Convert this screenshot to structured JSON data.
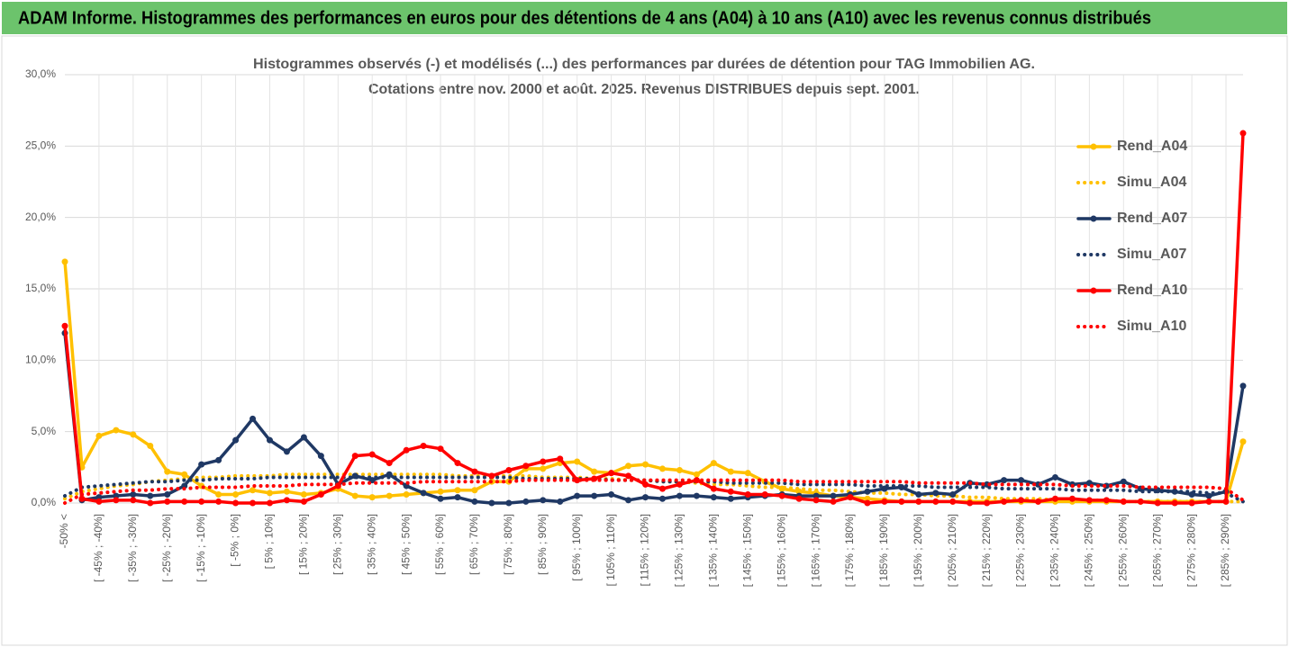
{
  "banner": "ADAM Informe. Histogrammes des performances en euros pour des détentions de 4 ans (A04) à 10 ans (A10) avec les revenus connus distribués",
  "chart_data": {
    "type": "line",
    "title": "Histogrammes observés (-) et modélisés (...) des performances par durées de détention pour TAG Immobilien AG.",
    "subtitle": "Cotations entre nov. 2000 et août. 2025. Revenus DISTRIBUES depuis sept. 2001.",
    "categories": [
      "-50% <",
      null,
      "[ -45% ; -40%]",
      null,
      "[ -35% ; -30%]",
      null,
      "[ -25% ; -20%]",
      null,
      "[ -15% ; -10%]",
      null,
      "[ -5% ; 0%]",
      null,
      "[ 5% ; 10%]",
      null,
      "[ 15% ; 20%]",
      null,
      "[ 25% ; 30%]",
      null,
      "[ 35% ; 40%]",
      null,
      "[ 45% ; 50%]",
      null,
      "[ 55% ; 60%]",
      null,
      "[ 65% ; 70%]",
      null,
      "[ 75% ; 80%]",
      null,
      "[ 85% ; 90%]",
      null,
      "[ 95% ; 100%]",
      null,
      "[ 105% ; 110%]",
      null,
      "[ 115% ; 120%]",
      null,
      "[ 125% ; 130%]",
      null,
      "[ 135% ; 140%]",
      null,
      "[ 145% ; 150%]",
      null,
      "[ 155% ; 160%]",
      null,
      "[ 165% ; 170%]",
      null,
      "[ 175% ; 180%]",
      null,
      "[ 185% ; 190%]",
      null,
      "[ 195% ; 200%]",
      null,
      "[ 205% ; 210%]",
      null,
      "[ 215% ; 220%]",
      null,
      "[ 225% ; 230%]",
      null,
      "[ 235% ; 240%]",
      null,
      "[ 245% ; 250%]",
      null,
      "[ 255% ; 260%]",
      null,
      "[ 265% ; 270%]",
      null,
      "[ 275% ; 280%]",
      null,
      "[ 285% ; 290%]",
      null
    ],
    "series": [
      {
        "name": "Rend_A04",
        "color": "#ffc000",
        "style": "solid",
        "values": [
          16.9,
          2.5,
          4.7,
          5.1,
          4.8,
          4.0,
          2.2,
          2.0,
          1.2,
          0.6,
          0.6,
          0.9,
          0.7,
          0.8,
          0.6,
          0.7,
          1.0,
          0.5,
          0.4,
          0.5,
          0.6,
          0.7,
          0.8,
          0.9,
          0.9,
          1.5,
          1.5,
          2.4,
          2.4,
          2.8,
          2.9,
          2.2,
          2.1,
          2.6,
          2.7,
          2.4,
          2.3,
          2.0,
          2.8,
          2.2,
          2.1,
          1.5,
          1.0,
          0.8,
          0.7,
          0.5,
          0.4,
          0.3,
          0.2,
          0.1,
          0.1,
          0.1,
          0.1,
          0.1,
          0.1,
          0.1,
          0.1,
          0.1,
          0.1,
          0.1,
          0.1,
          0.1,
          0.1,
          0.1,
          0.1,
          0.1,
          0.1,
          0.1,
          0.1,
          4.3
        ]
      },
      {
        "name": "Simu_A04",
        "color": "#ffc000",
        "style": "dotted",
        "values": [
          0.3,
          0.8,
          1.0,
          1.2,
          1.3,
          1.5,
          1.6,
          1.7,
          1.8,
          1.8,
          1.9,
          1.9,
          1.9,
          2.0,
          2.0,
          2.0,
          2.0,
          2.0,
          2.0,
          2.0,
          2.0,
          2.0,
          2.0,
          1.9,
          1.9,
          1.9,
          1.9,
          1.9,
          1.8,
          1.8,
          1.8,
          1.7,
          1.7,
          1.6,
          1.6,
          1.5,
          1.5,
          1.4,
          1.3,
          1.3,
          1.2,
          1.1,
          1.1,
          1.0,
          0.9,
          0.9,
          0.8,
          0.7,
          0.7,
          0.6,
          0.6,
          0.5,
          0.5,
          0.4,
          0.4,
          0.3,
          0.3,
          0.3,
          0.2,
          0.2,
          0.2,
          0.2,
          0.1,
          0.1,
          0.1,
          0.1,
          0.1,
          0.1,
          0.1,
          0.1
        ]
      },
      {
        "name": "Rend_A07",
        "color": "#1f3864",
        "style": "solid",
        "values": [
          11.9,
          0.2,
          0.4,
          0.5,
          0.6,
          0.5,
          0.6,
          1.2,
          2.7,
          3.0,
          4.4,
          5.9,
          4.4,
          3.6,
          4.6,
          3.3,
          1.3,
          1.9,
          1.6,
          2.0,
          1.2,
          0.7,
          0.3,
          0.4,
          0.1,
          0.0,
          0.0,
          0.1,
          0.2,
          0.1,
          0.5,
          0.5,
          0.6,
          0.2,
          0.4,
          0.3,
          0.5,
          0.5,
          0.4,
          0.3,
          0.4,
          0.5,
          0.6,
          0.5,
          0.5,
          0.5,
          0.6,
          0.8,
          1.0,
          1.1,
          0.6,
          0.7,
          0.6,
          1.4,
          1.3,
          1.6,
          1.6,
          1.3,
          1.8,
          1.3,
          1.4,
          1.2,
          1.5,
          1.0,
          0.9,
          0.8,
          0.6,
          0.5,
          0.8,
          8.2
        ]
      },
      {
        "name": "Simu_A07",
        "color": "#1f3864",
        "style": "dotted",
        "values": [
          0.5,
          1.1,
          1.2,
          1.3,
          1.4,
          1.5,
          1.5,
          1.6,
          1.6,
          1.7,
          1.7,
          1.7,
          1.8,
          1.8,
          1.8,
          1.8,
          1.8,
          1.8,
          1.8,
          1.8,
          1.8,
          1.8,
          1.8,
          1.8,
          1.8,
          1.8,
          1.8,
          1.7,
          1.7,
          1.7,
          1.7,
          1.7,
          1.6,
          1.6,
          1.6,
          1.5,
          1.5,
          1.5,
          1.5,
          1.4,
          1.4,
          1.4,
          1.4,
          1.3,
          1.3,
          1.3,
          1.3,
          1.2,
          1.2,
          1.2,
          1.2,
          1.1,
          1.1,
          1.1,
          1.1,
          1.0,
          1.0,
          1.0,
          1.0,
          0.9,
          0.9,
          0.9,
          0.9,
          0.8,
          0.8,
          0.8,
          0.8,
          0.7,
          0.7,
          0.1
        ]
      },
      {
        "name": "Rend_A10",
        "color": "#ff0000",
        "style": "solid",
        "values": [
          12.4,
          0.3,
          0.1,
          0.2,
          0.2,
          0.0,
          0.1,
          0.1,
          0.1,
          0.1,
          0.0,
          0.0,
          0.0,
          0.2,
          0.1,
          0.6,
          1.2,
          3.3,
          3.4,
          2.8,
          3.7,
          4.0,
          3.8,
          2.8,
          2.2,
          1.9,
          2.3,
          2.6,
          2.9,
          3.1,
          1.6,
          1.7,
          2.1,
          1.9,
          1.3,
          1.0,
          1.3,
          1.6,
          1.0,
          0.8,
          0.6,
          0.6,
          0.5,
          0.3,
          0.2,
          0.1,
          0.4,
          0.0,
          0.1,
          0.1,
          0.1,
          0.1,
          0.1,
          0.0,
          0.0,
          0.1,
          0.2,
          0.1,
          0.3,
          0.3,
          0.2,
          0.2,
          0.1,
          0.1,
          0.0,
          0.0,
          0.0,
          0.1,
          0.1,
          25.9
        ]
      },
      {
        "name": "Simu_A10",
        "color": "#ff0000",
        "style": "dotted",
        "values": [
          0.0,
          0.6,
          0.7,
          0.8,
          0.9,
          0.9,
          1.0,
          1.0,
          1.1,
          1.1,
          1.1,
          1.2,
          1.2,
          1.2,
          1.3,
          1.3,
          1.3,
          1.4,
          1.4,
          1.4,
          1.4,
          1.5,
          1.5,
          1.5,
          1.5,
          1.5,
          1.5,
          1.6,
          1.6,
          1.6,
          1.6,
          1.6,
          1.6,
          1.6,
          1.6,
          1.6,
          1.6,
          1.6,
          1.6,
          1.6,
          1.6,
          1.6,
          1.6,
          1.5,
          1.5,
          1.5,
          1.5,
          1.5,
          1.5,
          1.5,
          1.4,
          1.4,
          1.4,
          1.4,
          1.3,
          1.3,
          1.3,
          1.3,
          1.3,
          1.2,
          1.2,
          1.2,
          1.2,
          1.1,
          1.1,
          1.1,
          1.1,
          1.1,
          1.0,
          0.2
        ]
      }
    ],
    "ylim": [
      0,
      30
    ],
    "yticks": [
      {
        "value": 0,
        "label": "0,0%"
      },
      {
        "value": 5,
        "label": "5,0%"
      },
      {
        "value": 10,
        "label": "10,0%"
      },
      {
        "value": 15,
        "label": "15,0%"
      },
      {
        "value": 20,
        "label": "20,0%"
      },
      {
        "value": 25,
        "label": "25,0%"
      },
      {
        "value": 30,
        "label": "30,0%"
      }
    ],
    "grid": true,
    "legend": "right"
  }
}
